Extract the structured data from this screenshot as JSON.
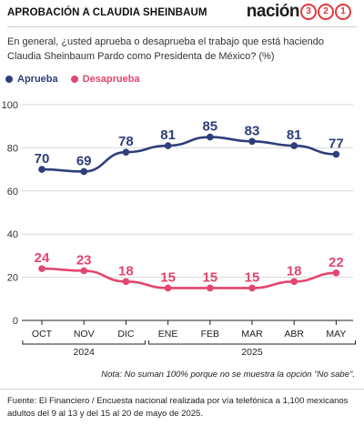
{
  "header": {
    "title": "APROBACIÓN A CLAUDIA SHEINBAUM",
    "brand_word": "nación",
    "brand_digits": [
      "3",
      "2",
      "1"
    ]
  },
  "question": "En general, ¿usted aprueba o desaprueba el trabajo que está haciendo Claudia Sheinbaum Pardo como Presidenta de México? (%)",
  "note": "Nota: No suman 100% porque no se muestra la opción \"No sabe\".",
  "source": "Fuente: El Financiero / Encuesta nacional realizada por vía telefónica a 1,100 mexicanos adultos del 9 al 13 y del 15 al 20 de mayo de 2025.",
  "colors": {
    "aprueba": "#2f3e7a",
    "desaprueba": "#e2466f",
    "brand_accent": "#e0393e"
  },
  "chart_data": {
    "type": "line",
    "title": "",
    "xlabel": "",
    "ylabel": "",
    "categories": [
      "OCT",
      "NOV",
      "DIC",
      "ENE",
      "FEB",
      "MAR",
      "ABR",
      "MAY"
    ],
    "year_groups": [
      {
        "label": "2024",
        "categories": [
          "OCT",
          "NOV",
          "DIC"
        ]
      },
      {
        "label": "2025",
        "categories": [
          "ENE",
          "FEB",
          "MAR",
          "ABR",
          "MAY"
        ]
      }
    ],
    "series": [
      {
        "name": "Aprueba",
        "color": "#2f3e7a",
        "values": [
          70,
          69,
          78,
          81,
          85,
          83,
          81,
          77
        ]
      },
      {
        "name": "Desaprueba",
        "color": "#e2466f",
        "values": [
          24,
          23,
          18,
          15,
          15,
          15,
          18,
          22
        ]
      }
    ],
    "ylim": [
      0,
      100
    ],
    "yticks": [
      0,
      20,
      40,
      60,
      80,
      100
    ],
    "grid": true,
    "legend": "top-left"
  }
}
